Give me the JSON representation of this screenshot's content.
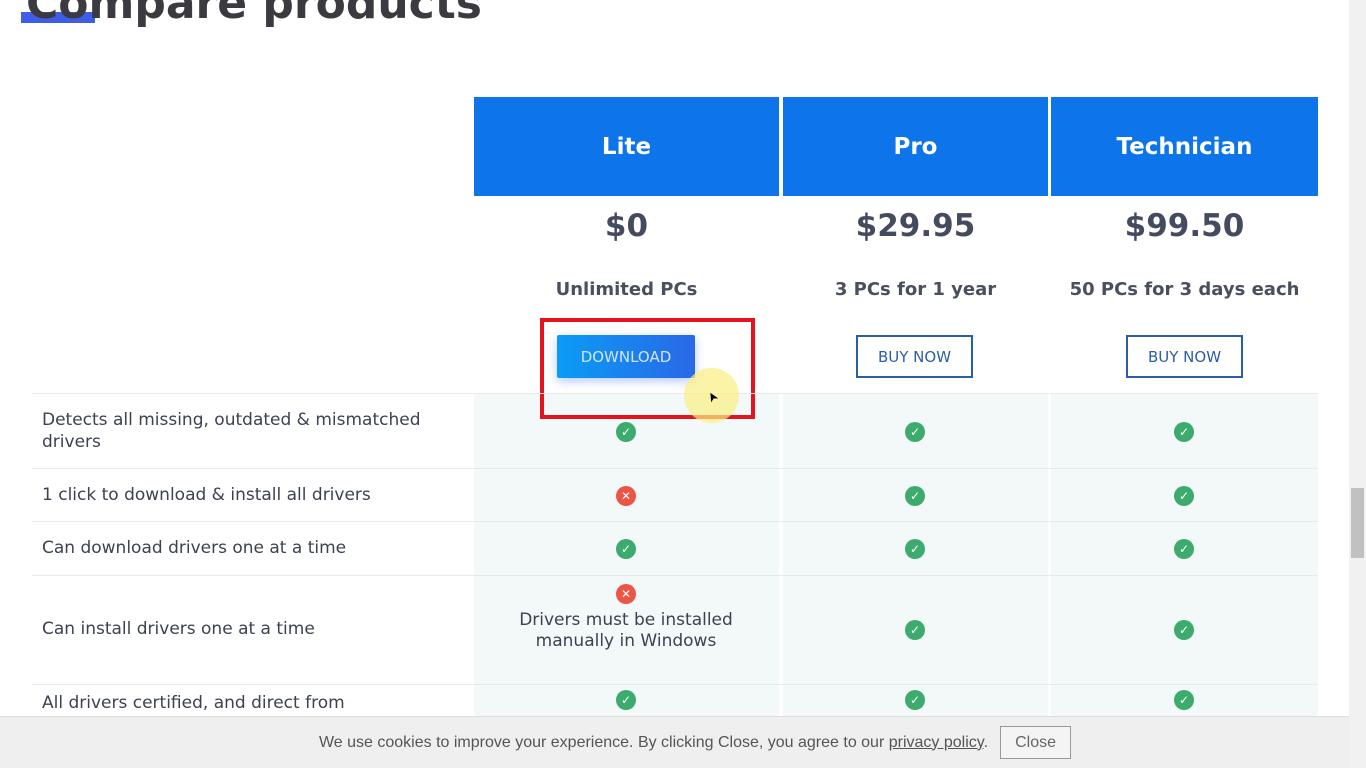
{
  "page": {
    "title": "Compare products"
  },
  "plans": [
    {
      "name": "Lite",
      "price": "$0",
      "subtitle": "Unlimited PCs",
      "button": "DOWNLOAD"
    },
    {
      "name": "Pro",
      "price": "$29.95",
      "subtitle": "3 PCs for 1 year",
      "button": "BUY NOW"
    },
    {
      "name": "Technician",
      "price": "$99.50",
      "subtitle": "50 PCs for 3 days each",
      "button": "BUY NOW"
    }
  ],
  "features": [
    {
      "label": "Detects all missing, outdated & mismatched drivers",
      "lite": "check",
      "pro": "check",
      "tech": "check"
    },
    {
      "label": "1 click to download & install all drivers",
      "lite": "cross",
      "pro": "check",
      "tech": "check"
    },
    {
      "label": "Can download drivers one at a time",
      "lite": "check",
      "pro": "check",
      "tech": "check"
    },
    {
      "label": "Can install drivers one at a time",
      "lite": "cross",
      "lite_note": "Drivers must be installed manually in Windows",
      "pro": "check",
      "tech": "check"
    },
    {
      "label": "All drivers certified, and direct from",
      "lite": "check",
      "pro": "check",
      "tech": "check"
    }
  ],
  "cookie": {
    "text": "We use cookies to improve your experience. By clicking Close, you agree to our ",
    "link": "privacy policy",
    "close": "Close"
  },
  "colors": {
    "header": "#0d74ea",
    "check": "#3daa6e",
    "cross": "#ec5545",
    "highlight": "#e5141c"
  }
}
